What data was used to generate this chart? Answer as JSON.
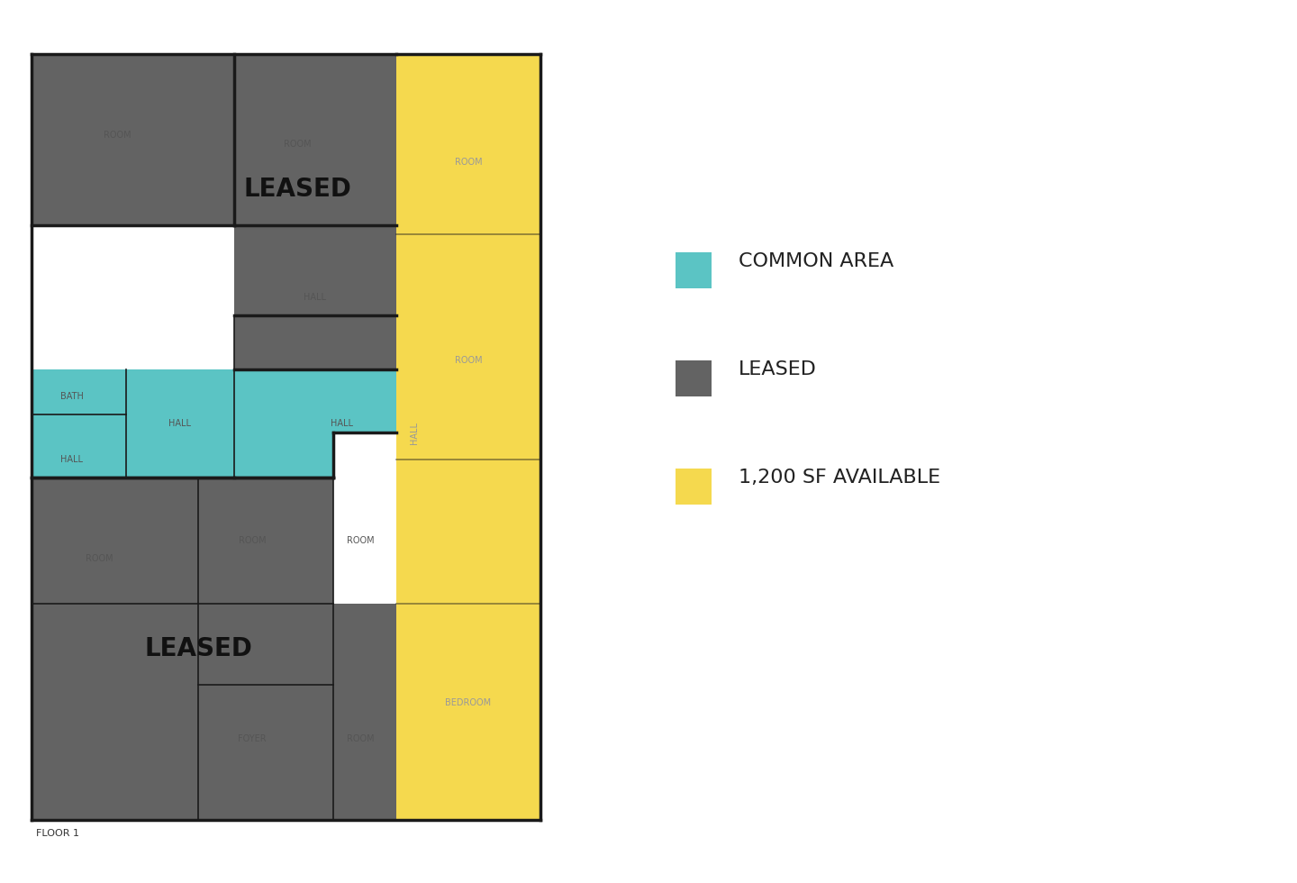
{
  "bg_color": "#ffffff",
  "gray_color": "#636363",
  "cyan_color": "#5bc4c4",
  "yellow_color": "#f5d94e",
  "wall_color": "#1a1a1a",
  "wall_lw": 2.5,
  "thin_wall_lw": 1.2,
  "label_small_fs": 7,
  "label_large_fs": 20,
  "legend_label_fs": 16,
  "floor_label": "FLOOR 1",
  "legend_items": [
    {
      "color": "#5bc4c4",
      "label": "COMMON AREA"
    },
    {
      "color": "#636363",
      "label": "LEASED"
    },
    {
      "color": "#f5d94e",
      "label": "1,200 SF AVAILABLE"
    }
  ]
}
